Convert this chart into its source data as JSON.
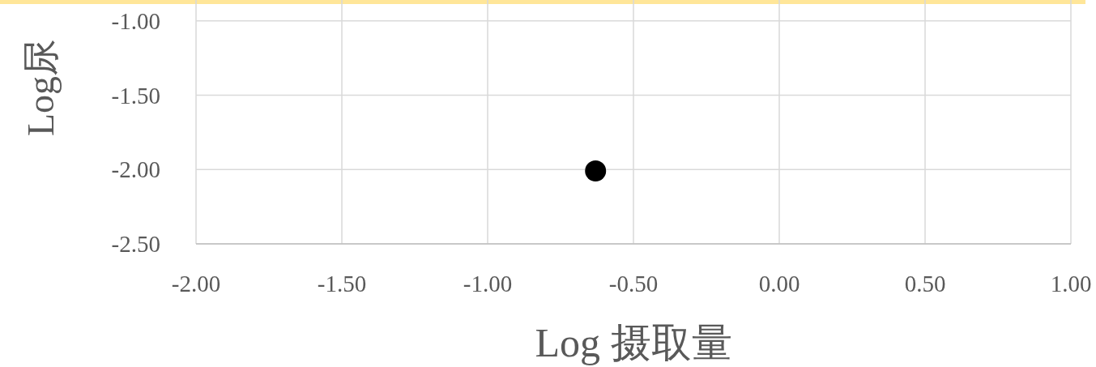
{
  "chart_data": {
    "type": "scatter",
    "xlabel": "Log 摄取量",
    "ylabel": "Log尿",
    "series": [
      {
        "color": "#000000",
        "x": [
          -0.63
        ],
        "values": [
          -2.01
        ]
      }
    ],
    "xlim": [
      -2,
      1
    ],
    "xticks": [
      {
        "value": -2,
        "label": "-2.00"
      },
      {
        "value": -1.5,
        "label": "-1.50"
      },
      {
        "value": -1,
        "label": "-1.00"
      },
      {
        "value": -0.5,
        "label": "-0.50"
      },
      {
        "value": 0,
        "label": "0.00"
      },
      {
        "value": 0.5,
        "label": "0.50"
      },
      {
        "value": 1,
        "label": "1.00"
      }
    ],
    "ylim": [
      -2.5,
      -0.86
    ],
    "yticks": [
      {
        "value": -2.5,
        "label": "-2.50"
      },
      {
        "value": -2,
        "label": "-2.00"
      },
      {
        "value": -1.5,
        "label": "-1.50"
      },
      {
        "value": -1,
        "label": "-1.00"
      }
    ],
    "grid": true,
    "marker": "circle"
  }
}
